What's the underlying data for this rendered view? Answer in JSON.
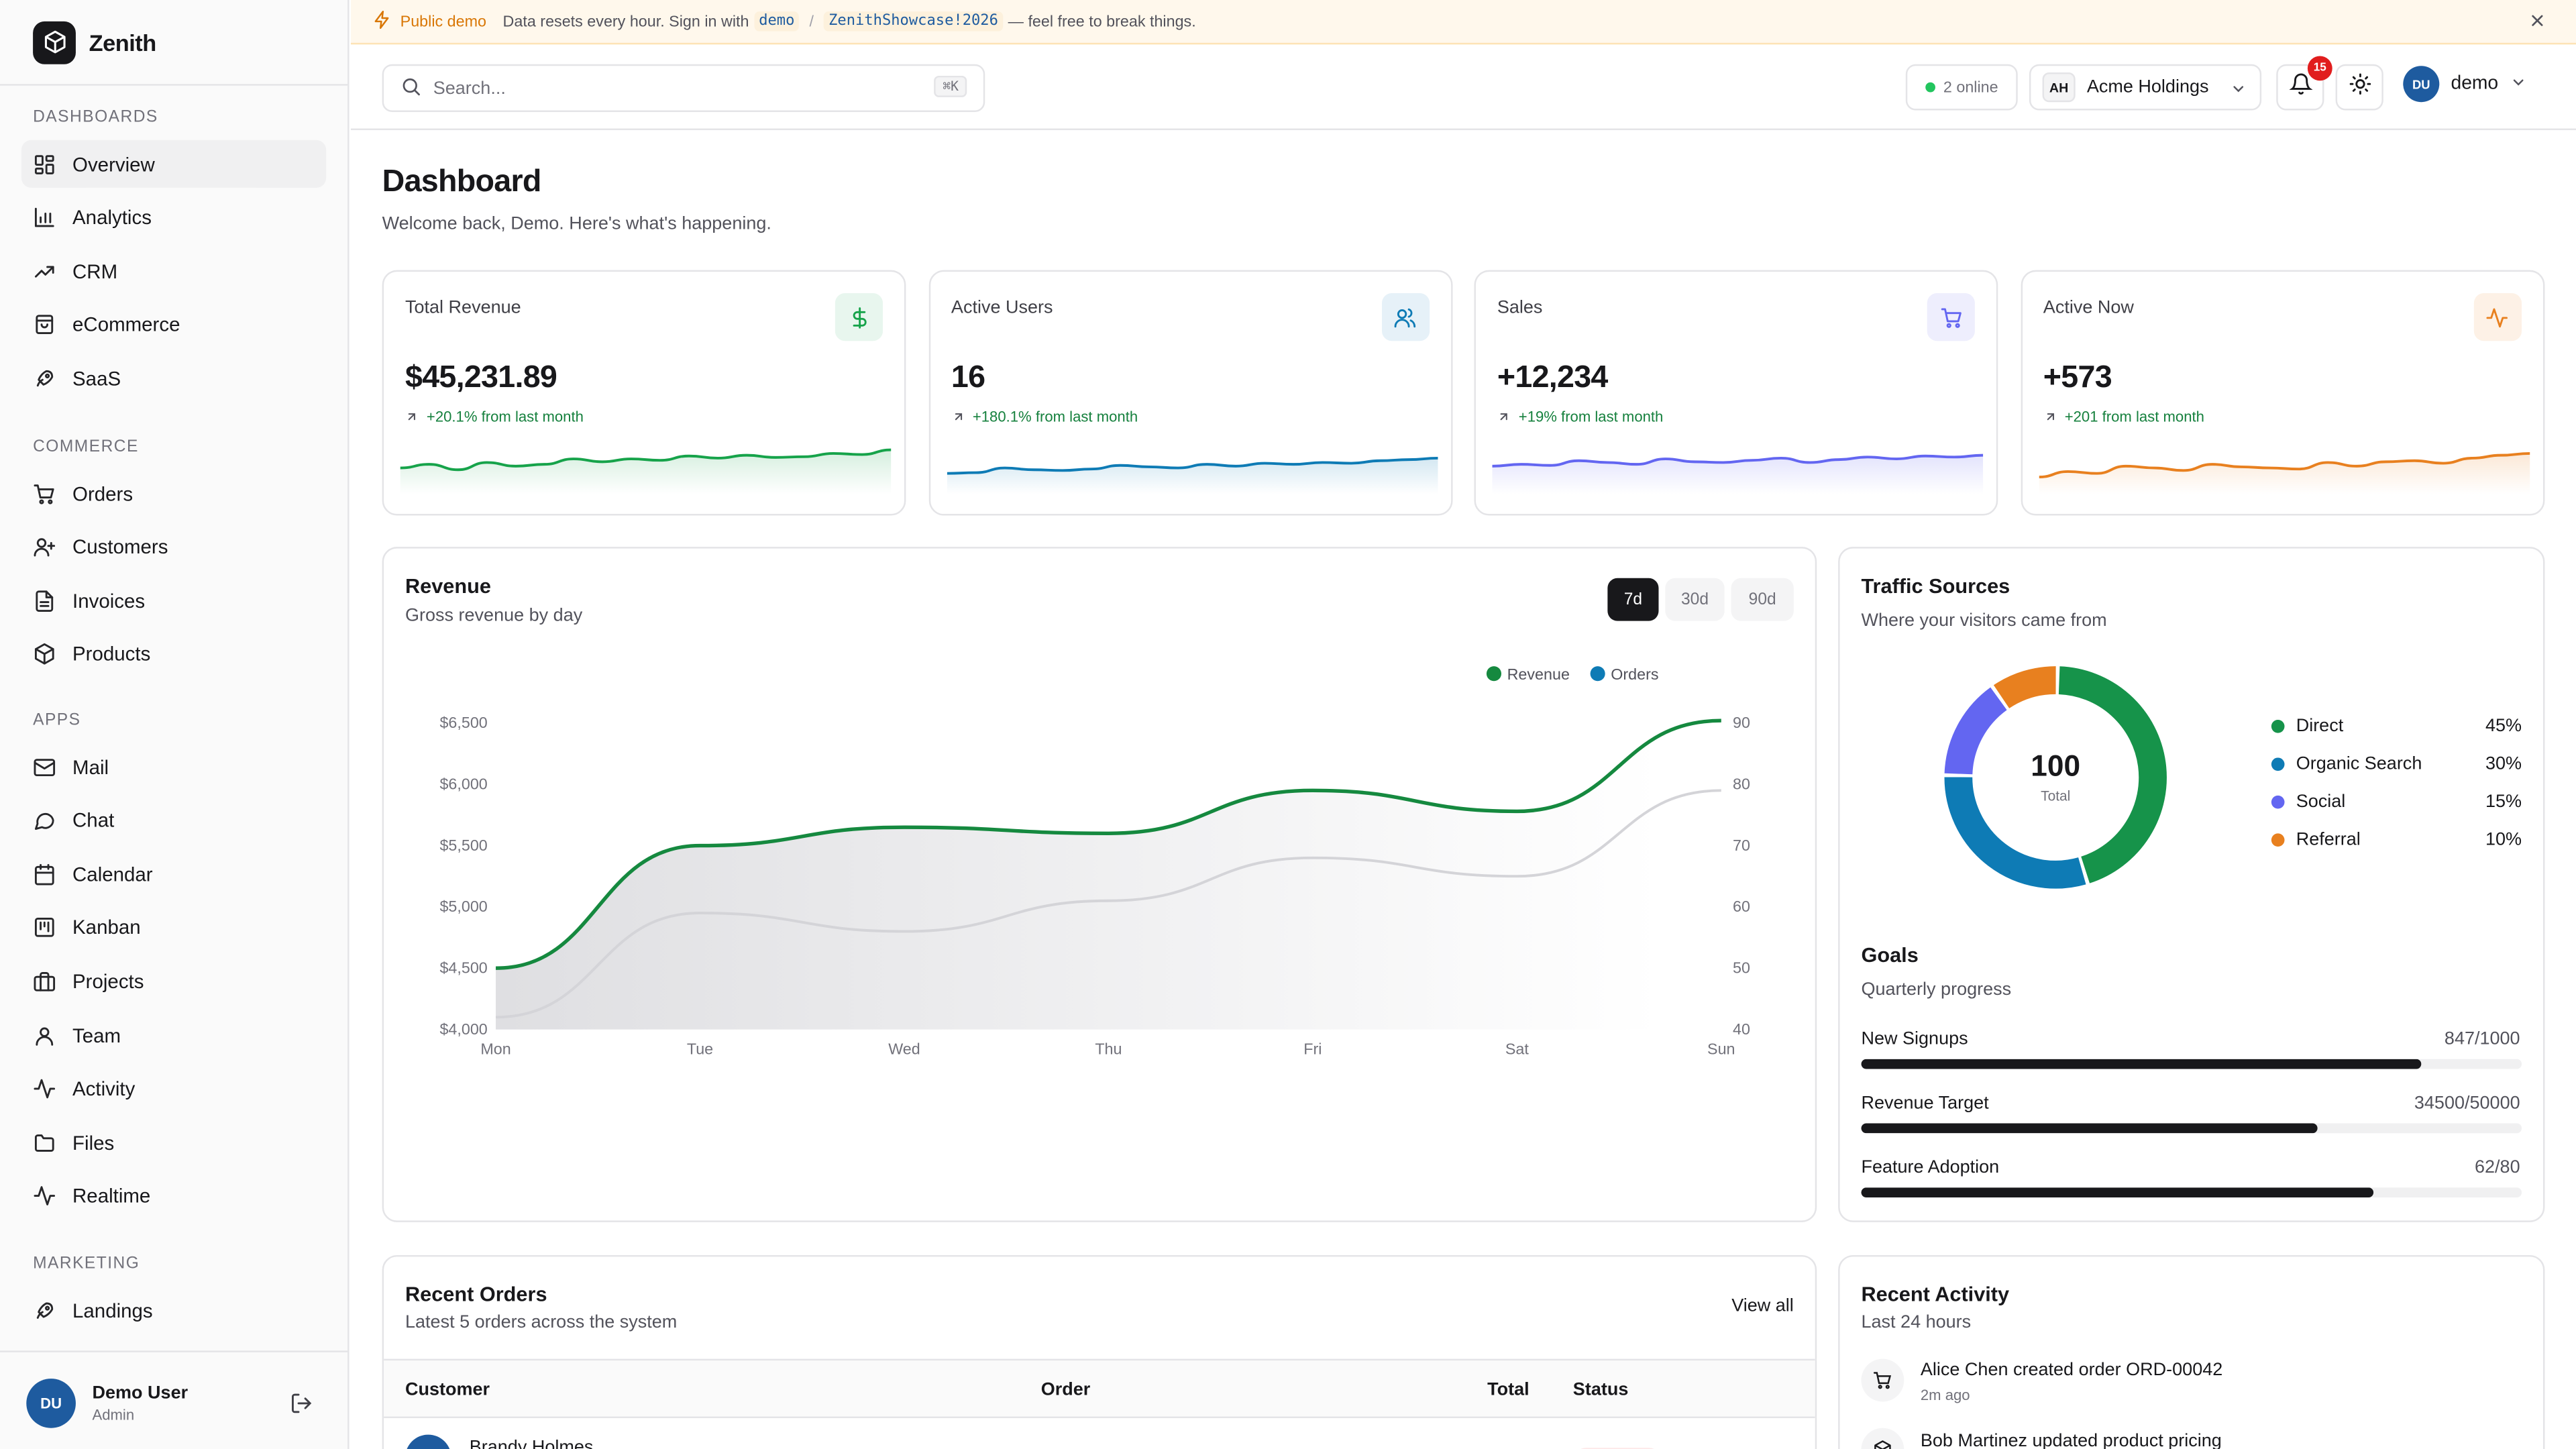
{
  "app": {
    "name": "Zenith"
  },
  "banner": {
    "tag": "Public demo",
    "text_before": "Data resets every hour. Sign in with",
    "username": "demo",
    "separator": "/",
    "password": "ZenithShowcase!2026",
    "text_after": "— feel free to break things."
  },
  "sidebar": {
    "sections": [
      {
        "title": "DASHBOARDS",
        "items": [
          {
            "label": "Overview",
            "icon": "grid-icon",
            "active": true
          },
          {
            "label": "Analytics",
            "icon": "bar-chart-icon"
          },
          {
            "label": "CRM",
            "icon": "trending-up-icon"
          },
          {
            "label": "eCommerce",
            "icon": "shopping-bag-icon"
          },
          {
            "label": "SaaS",
            "icon": "rocket-icon"
          }
        ]
      },
      {
        "title": "COMMERCE",
        "items": [
          {
            "label": "Orders",
            "icon": "cart-icon"
          },
          {
            "label": "Customers",
            "icon": "user-plus-icon"
          },
          {
            "label": "Invoices",
            "icon": "file-text-icon"
          },
          {
            "label": "Products",
            "icon": "package-icon"
          }
        ]
      },
      {
        "title": "APPS",
        "items": [
          {
            "label": "Mail",
            "icon": "mail-icon"
          },
          {
            "label": "Chat",
            "icon": "chat-icon"
          },
          {
            "label": "Calendar",
            "icon": "calendar-icon"
          },
          {
            "label": "Kanban",
            "icon": "kanban-icon"
          },
          {
            "label": "Projects",
            "icon": "briefcase-icon"
          },
          {
            "label": "Team",
            "icon": "user-icon"
          },
          {
            "label": "Activity",
            "icon": "activity-icon"
          },
          {
            "label": "Files",
            "icon": "folder-icon"
          },
          {
            "label": "Realtime",
            "icon": "pulse-icon"
          }
        ]
      },
      {
        "title": "MARKETING",
        "items": [
          {
            "label": "Landings",
            "icon": "rocket-icon"
          }
        ]
      }
    ],
    "user": {
      "initials": "DU",
      "name": "Demo User",
      "role": "Admin"
    }
  },
  "header": {
    "search_placeholder": "Search...",
    "search_shortcut": "⌘K",
    "online": "2 online",
    "org_initials": "AH",
    "org_name": "Acme Holdings",
    "notifications": "15",
    "user_initials": "DU",
    "user_name": "demo"
  },
  "page": {
    "title": "Dashboard",
    "subtitle": "Welcome back, Demo. Here's what's happening."
  },
  "stats": [
    {
      "title": "Total Revenue",
      "value": "$45,231.89",
      "change": "+20.1% from last month",
      "icon": "dollar-icon",
      "color": "#16a34a",
      "tint": "#e8f6ee",
      "trend": [
        0.45,
        0.55,
        0.4,
        0.6,
        0.5,
        0.55,
        0.7,
        0.62,
        0.7,
        0.66,
        0.78,
        0.72,
        0.8,
        0.74,
        0.76,
        0.85,
        0.82,
        0.95
      ]
    },
    {
      "title": "Active Users",
      "value": "16",
      "change": "+180.1% from last month",
      "icon": "users-icon",
      "color": "#0e7bb5",
      "tint": "#e6f1f8",
      "trend": [
        0.3,
        0.32,
        0.45,
        0.4,
        0.38,
        0.42,
        0.52,
        0.48,
        0.45,
        0.55,
        0.5,
        0.58,
        0.55,
        0.6,
        0.58,
        0.65,
        0.68,
        0.72
      ]
    },
    {
      "title": "Sales",
      "value": "+12,234",
      "change": "+19% from last month",
      "icon": "cart-icon",
      "color": "#6366f1",
      "tint": "#eeeefd",
      "trend": [
        0.5,
        0.55,
        0.52,
        0.65,
        0.6,
        0.55,
        0.7,
        0.62,
        0.6,
        0.66,
        0.72,
        0.6,
        0.68,
        0.75,
        0.7,
        0.78,
        0.75,
        0.8
      ]
    },
    {
      "title": "Active Now",
      "value": "+573",
      "change": "+201 from last month",
      "icon": "pulse-icon",
      "color": "#e8801f",
      "tint": "#fdf1e6",
      "trend": [
        0.2,
        0.35,
        0.3,
        0.5,
        0.45,
        0.38,
        0.55,
        0.48,
        0.45,
        0.42,
        0.6,
        0.5,
        0.62,
        0.65,
        0.58,
        0.72,
        0.8,
        0.85
      ]
    }
  ],
  "revenue": {
    "title": "Revenue",
    "subtitle": "Gross revenue by day",
    "ranges": [
      "7d",
      "30d",
      "90d"
    ],
    "active_range": "7d"
  },
  "chart_data": {
    "type": "line",
    "categories": [
      "Mon",
      "Tue",
      "Wed",
      "Thu",
      "Fri",
      "Sat",
      "Sun"
    ],
    "series": [
      {
        "name": "Revenue",
        "axis": "left",
        "color": "#15893f",
        "values": [
          4500,
          5500,
          5650,
          5600,
          5950,
          5780,
          6520
        ]
      },
      {
        "name": "Orders",
        "axis": "right",
        "color": "#0e7bb5",
        "values": [
          42,
          59,
          56,
          61,
          68,
          65,
          79
        ]
      }
    ],
    "y_left": {
      "ticks": [
        "$6,500",
        "$6,000",
        "$5,500",
        "$5,000",
        "$4,500",
        "$4,000"
      ],
      "min": 4000,
      "max": 6500
    },
    "y_right": {
      "ticks": [
        "90",
        "80",
        "70",
        "60",
        "50",
        "40"
      ],
      "min": 40,
      "max": 90
    },
    "legend_placement": "top-right",
    "grid": false
  },
  "traffic": {
    "title": "Traffic Sources",
    "subtitle": "Where your visitors came from",
    "total": "100",
    "total_label": "Total",
    "sources": [
      {
        "name": "Direct",
        "pct": "45%",
        "value": 45,
        "color": "#16934a"
      },
      {
        "name": "Organic Search",
        "pct": "30%",
        "value": 30,
        "color": "#0e7bb5"
      },
      {
        "name": "Social",
        "pct": "15%",
        "value": 15,
        "color": "#6366f1"
      },
      {
        "name": "Referral",
        "pct": "10%",
        "value": 10,
        "color": "#e8801f"
      }
    ]
  },
  "goals": {
    "title": "Goals",
    "subtitle": "Quarterly progress",
    "items": [
      {
        "label": "New Signups",
        "value": "847/1000",
        "fraction": 0.847
      },
      {
        "label": "Revenue Target",
        "value": "34500/50000",
        "fraction": 0.69
      },
      {
        "label": "Feature Adoption",
        "value": "62/80",
        "fraction": 0.775
      }
    ]
  },
  "orders": {
    "title": "Recent Orders",
    "subtitle": "Latest 5 orders across the system",
    "view_all": "View all",
    "columns": [
      "Customer",
      "Order",
      "Total",
      "Status"
    ],
    "first_customer": "Brandy Holmes"
  },
  "activity": {
    "title": "Recent Activity",
    "subtitle": "Last 24 hours",
    "items": [
      {
        "text": "Alice Chen created order ORD-00042",
        "time": "2m ago"
      },
      {
        "text": "Bob Martinez updated product pricing",
        "time": ""
      }
    ]
  }
}
